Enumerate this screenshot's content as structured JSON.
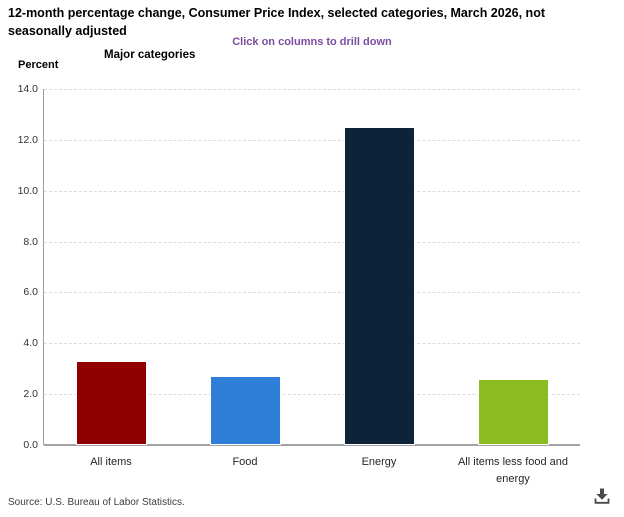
{
  "header": {
    "title": "12-month percentage change, Consumer Price Index, selected categories, March 2026, not seasonally adjusted",
    "subtitle": "Click on columns to drill down",
    "subtitle_color": "#7a4da0"
  },
  "chart_data": {
    "type": "bar",
    "title": "12-month percentage change, Consumer Price Index, selected categories, March 2026, not seasonally adjusted",
    "subtitle": "Click on columns to drill down",
    "xlabel": "Major categories",
    "ylabel": "Percent",
    "categories": [
      "All items",
      "Food",
      "Energy",
      "All items less food and energy"
    ],
    "values": [
      3.3,
      2.7,
      12.5,
      2.6
    ],
    "colors": [
      "#910000",
      "#2f7ed8",
      "#0d233a",
      "#8bbc21"
    ],
    "ylim": [
      0,
      14
    ],
    "ytick_step": 2,
    "ytick_decimals": 1,
    "grid": "horizontal-dashed",
    "legend": "none"
  },
  "footer": {
    "source": "Source: U.S. Bureau of Labor Statistics.",
    "download_icon": "download-icon",
    "icon_color": "#4a4a4a"
  }
}
